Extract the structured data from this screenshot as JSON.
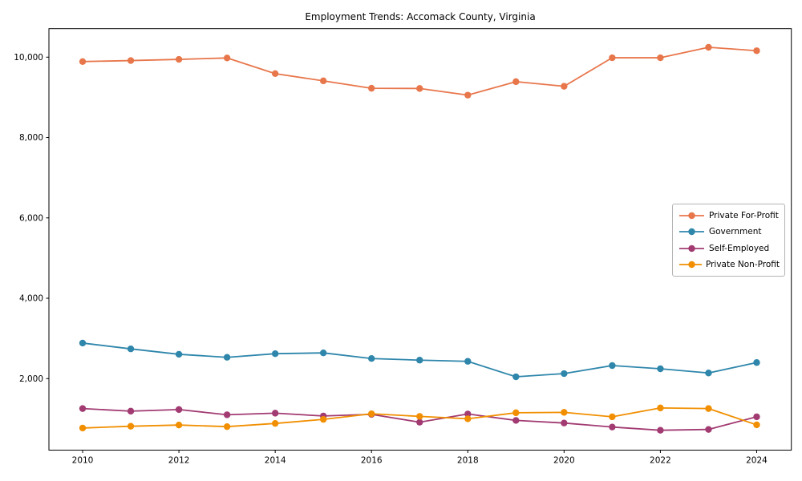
{
  "chart_data": {
    "type": "line",
    "title": "Employment Trends: Accomack County, Virginia",
    "xlabel": "",
    "ylabel": "",
    "x": [
      2010,
      2011,
      2012,
      2013,
      2014,
      2015,
      2016,
      2017,
      2018,
      2019,
      2020,
      2021,
      2022,
      2023,
      2024
    ],
    "series": [
      {
        "name": "Private For-Profit",
        "color": "#E8764B",
        "values": [
          9890,
          9915,
          9945,
          9980,
          9590,
          9410,
          9225,
          9220,
          9055,
          9390,
          9275,
          9985,
          9985,
          10245,
          10160
        ]
      },
      {
        "name": "Government",
        "color": "#2E86AB",
        "values": [
          2885,
          2740,
          2605,
          2530,
          2620,
          2640,
          2500,
          2460,
          2430,
          2045,
          2125,
          2325,
          2245,
          2140,
          2400
        ]
      },
      {
        "name": "Self-Employed",
        "color": "#A23B72",
        "values": [
          1255,
          1190,
          1230,
          1100,
          1140,
          1070,
          1110,
          915,
          1120,
          960,
          895,
          795,
          715,
          735,
          1050
        ]
      },
      {
        "name": "Private Non-Profit",
        "color": "#F18F01",
        "values": [
          770,
          815,
          845,
          805,
          885,
          985,
          1125,
          1060,
          1000,
          1150,
          1160,
          1050,
          1270,
          1255,
          850
        ]
      }
    ],
    "xticks": [
      2010,
      2012,
      2014,
      2016,
      2018,
      2020,
      2022,
      2024
    ],
    "yticks": [
      2000,
      4000,
      6000,
      8000,
      10000
    ],
    "ytick_labels": [
      "2,000",
      "4,000",
      "6,000",
      "8,000",
      "10,000"
    ],
    "xlim": [
      2009.3,
      2024.72
    ],
    "ylim": [
      220,
      10710
    ],
    "grid": false,
    "legend_position": "center right",
    "marker": "o"
  }
}
